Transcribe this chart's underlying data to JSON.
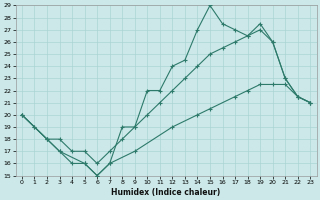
{
  "xlabel": "Humidex (Indice chaleur)",
  "bg_color": "#cce8e8",
  "line_color": "#2d7a6b",
  "grid_color": "#aad4d4",
  "xlim": [
    -0.5,
    23.5
  ],
  "ylim": [
    15,
    29
  ],
  "xticks": [
    0,
    1,
    2,
    3,
    4,
    5,
    6,
    7,
    8,
    9,
    10,
    11,
    12,
    13,
    14,
    15,
    16,
    17,
    18,
    19,
    20,
    21,
    22,
    23
  ],
  "yticks": [
    15,
    16,
    17,
    18,
    19,
    20,
    21,
    22,
    23,
    24,
    25,
    26,
    27,
    28,
    29
  ],
  "line1_x": [
    0,
    1,
    2,
    3,
    4,
    5,
    6,
    7,
    8,
    9,
    10,
    11,
    12,
    13,
    14,
    15,
    16,
    17,
    18,
    19,
    20,
    21,
    22,
    23
  ],
  "line1_y": [
    20,
    19,
    18,
    17,
    16,
    16,
    15,
    16,
    19,
    19,
    22,
    22,
    24,
    24.5,
    27,
    29,
    27.5,
    27,
    26.5,
    27.5,
    26,
    23,
    21.5,
    21
  ],
  "line2_x": [
    0,
    1,
    2,
    3,
    4,
    5,
    6,
    7,
    8,
    9,
    10,
    11,
    12,
    13,
    14,
    15,
    16,
    17,
    18,
    19,
    20,
    21,
    22,
    23
  ],
  "line2_y": [
    20,
    19,
    18,
    18,
    17,
    17,
    16,
    17,
    18,
    19,
    20,
    21,
    22,
    23,
    24,
    25,
    25.5,
    26,
    26.5,
    27,
    26,
    23,
    21.5,
    21
  ],
  "line3_x": [
    0,
    2,
    3,
    5,
    6,
    7,
    9,
    12,
    14,
    15,
    17,
    18,
    19,
    20,
    21,
    22,
    23
  ],
  "line3_y": [
    20,
    18,
    17,
    16,
    15,
    16,
    17,
    19,
    20,
    20.5,
    21.5,
    22,
    22.5,
    22.5,
    22.5,
    21.5,
    21
  ]
}
